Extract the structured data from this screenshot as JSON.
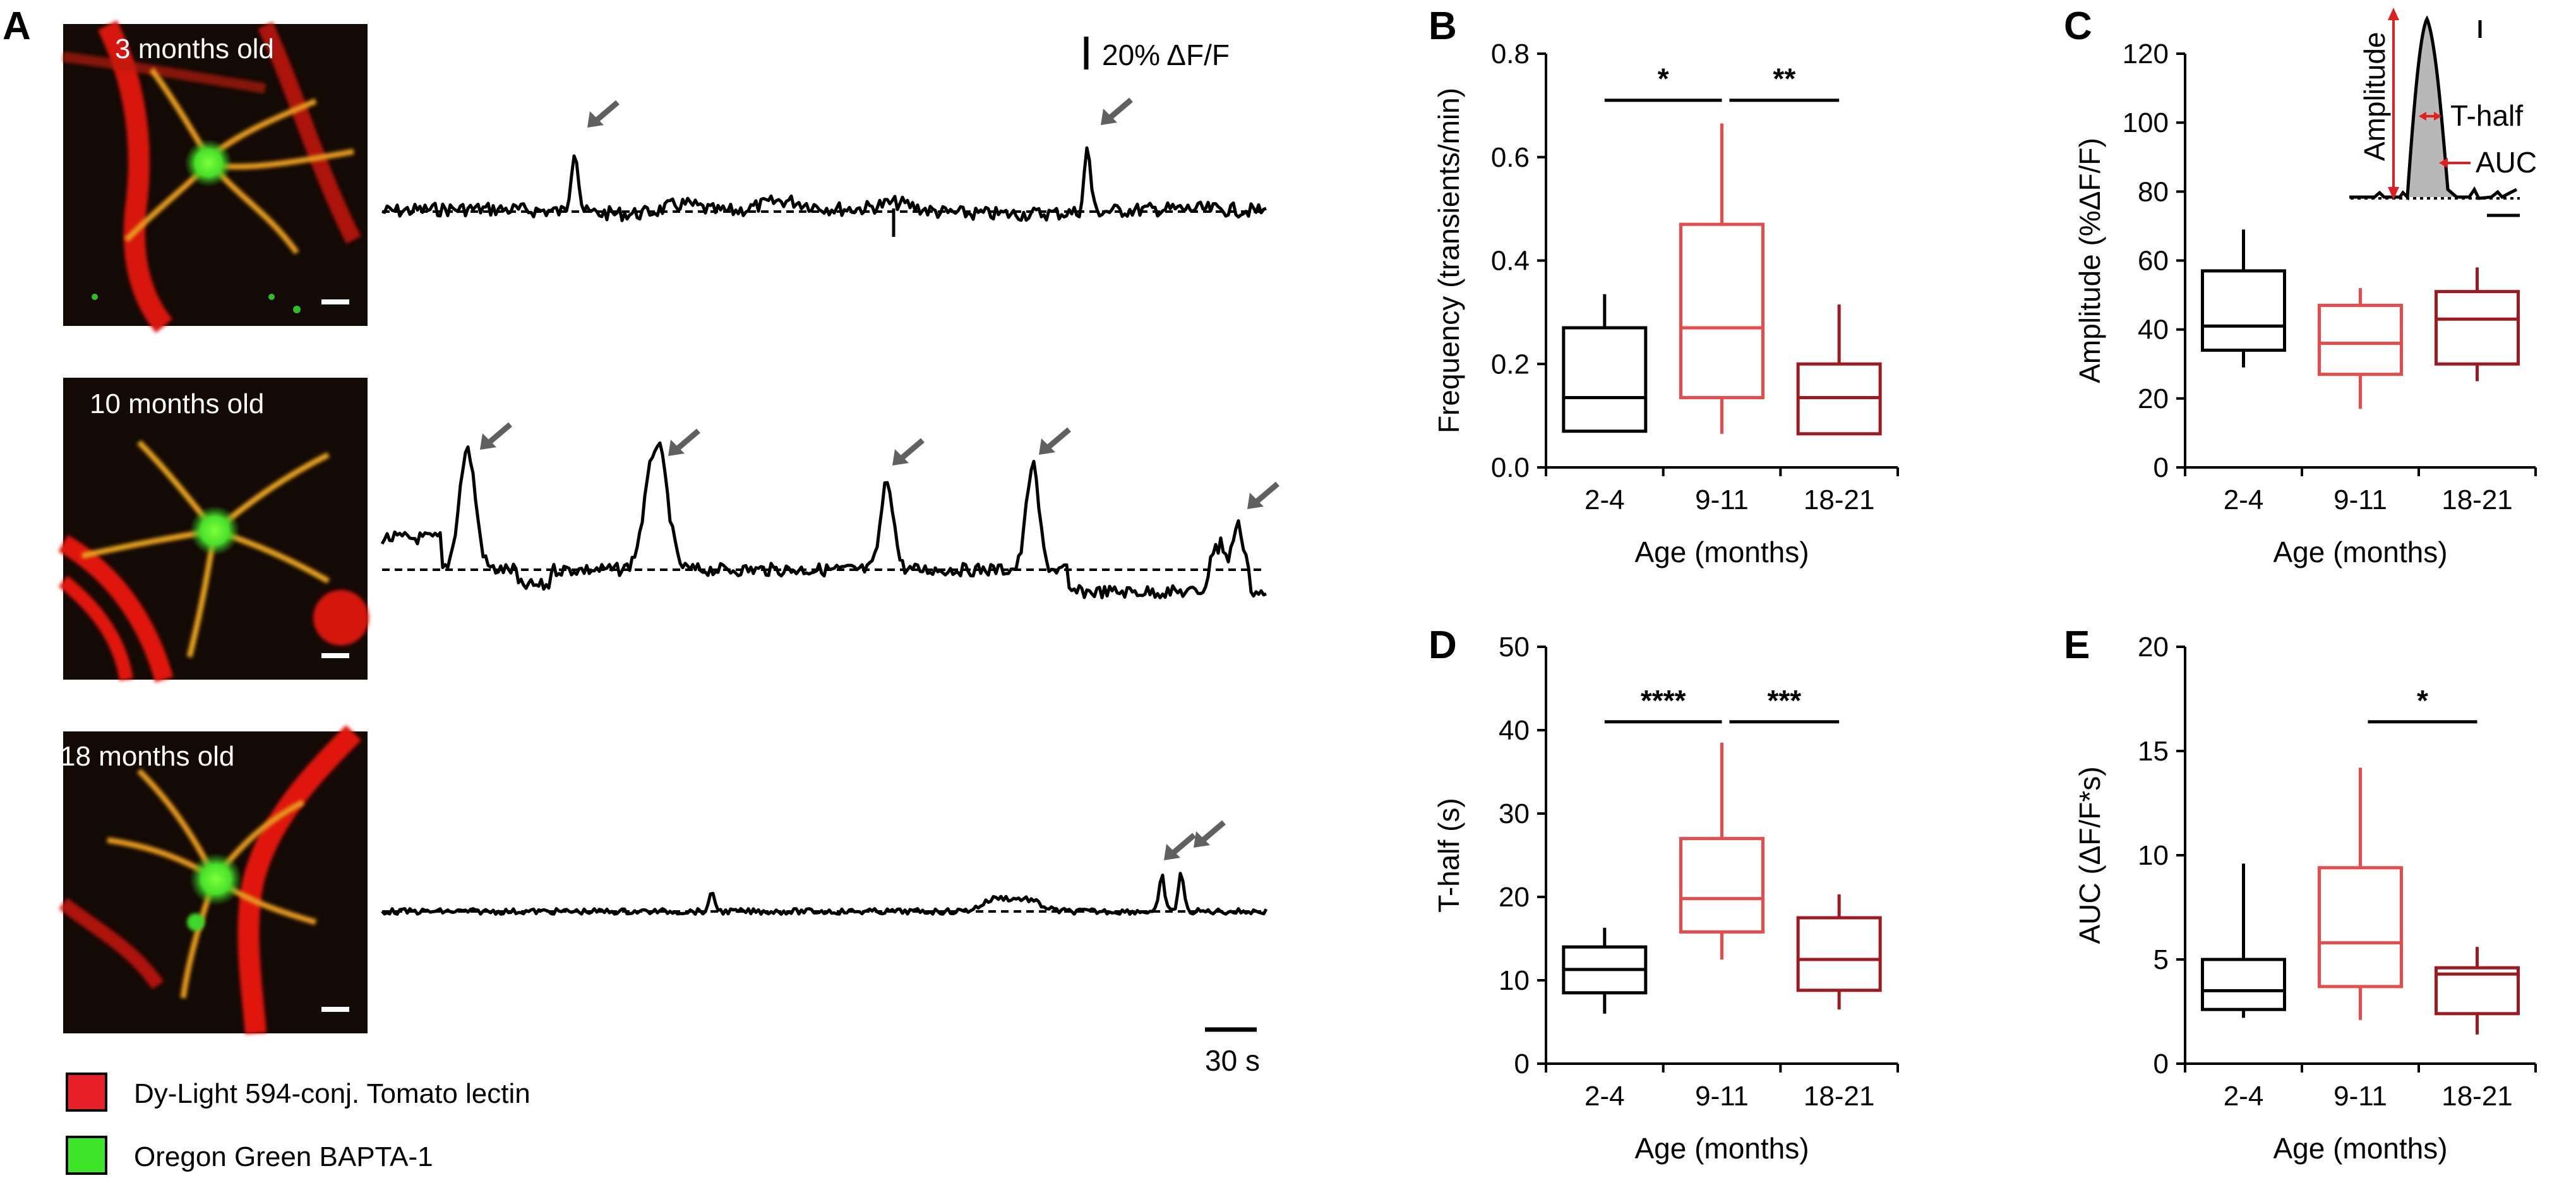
{
  "colors": {
    "black": "#000000",
    "light_red": "#ea4a4a",
    "dark_red": "#a01820",
    "arrow": "#606060",
    "lectin_red": "#e8202a",
    "ogb_green": "#3fe52a"
  },
  "panel_a": {
    "letter": "A",
    "images": [
      {
        "title": "3 months old"
      },
      {
        "title": "10 months old"
      },
      {
        "title": "18 months old"
      }
    ],
    "scale_y_label": "20% ΔF/F",
    "scale_x_label": "30 s",
    "legend": [
      {
        "label": "Dy-Light 594-conj. Tomato lectin",
        "color": "#e8202a"
      },
      {
        "label": "Oregon Green BAPTA-1",
        "color": "#3fe52a"
      }
    ]
  },
  "inset": {
    "amplitude_label": "Amplitude",
    "thalf_label": "T-half",
    "auc_label": "AUC"
  },
  "chart_data": [
    {
      "id": "B",
      "letter": "B",
      "type": "box",
      "ylabel": "Frequency (transients/min)",
      "xlabel": "Age (months)",
      "categories": [
        "2-4",
        "9-11",
        "18-21"
      ],
      "ylim": [
        0,
        0.8
      ],
      "yticks": [
        0.0,
        0.2,
        0.4,
        0.6,
        0.8
      ],
      "ytick_labels": [
        "0.0",
        "0.2",
        "0.4",
        "0.6",
        "0.8"
      ],
      "boxes": [
        {
          "whisker_low": 0.07,
          "q1": 0.07,
          "median": 0.135,
          "q3": 0.27,
          "whisker_high": 0.335
        },
        {
          "whisker_low": 0.065,
          "q1": 0.135,
          "median": 0.27,
          "q3": 0.47,
          "whisker_high": 0.665
        },
        {
          "whisker_low": 0.065,
          "q1": 0.065,
          "median": 0.135,
          "q3": 0.2,
          "whisker_high": 0.315
        }
      ],
      "significance": [
        {
          "from": 0,
          "to": 1,
          "y": 0.71,
          "label": "*"
        },
        {
          "from": 1,
          "to": 2,
          "y": 0.71,
          "label": "**"
        }
      ]
    },
    {
      "id": "C",
      "letter": "C",
      "type": "box",
      "ylabel": "Amplitude (%ΔF/F)",
      "xlabel": "Age (months)",
      "categories": [
        "2-4",
        "9-11",
        "18-21"
      ],
      "ylim": [
        0,
        120
      ],
      "yticks": [
        0,
        20,
        40,
        60,
        80,
        100,
        120
      ],
      "ytick_labels": [
        "0",
        "20",
        "40",
        "60",
        "80",
        "100",
        "120"
      ],
      "boxes": [
        {
          "whisker_low": 29,
          "q1": 34,
          "median": 41,
          "q3": 57,
          "whisker_high": 69
        },
        {
          "whisker_low": 17,
          "q1": 27,
          "median": 36,
          "q3": 47,
          "whisker_high": 52
        },
        {
          "whisker_low": 25,
          "q1": 30,
          "median": 43,
          "q3": 51,
          "whisker_high": 58
        }
      ],
      "significance": []
    },
    {
      "id": "D",
      "letter": "D",
      "type": "box",
      "ylabel": "T-half (s)",
      "xlabel": "Age (months)",
      "categories": [
        "2-4",
        "9-11",
        "18-21"
      ],
      "ylim": [
        0,
        50
      ],
      "yticks": [
        0,
        10,
        20,
        30,
        40,
        50
      ],
      "ytick_labels": [
        "0",
        "10",
        "20",
        "30",
        "40",
        "50"
      ],
      "boxes": [
        {
          "whisker_low": 6,
          "q1": 8.5,
          "median": 11.3,
          "q3": 14,
          "whisker_high": 16.3
        },
        {
          "whisker_low": 12.5,
          "q1": 15.8,
          "median": 19.8,
          "q3": 27,
          "whisker_high": 38.5
        },
        {
          "whisker_low": 6.5,
          "q1": 8.8,
          "median": 12.5,
          "q3": 17.5,
          "whisker_high": 20.3
        }
      ],
      "significance": [
        {
          "from": 0,
          "to": 1,
          "y": 41,
          "label": "****"
        },
        {
          "from": 1,
          "to": 2,
          "y": 41,
          "label": "***"
        }
      ]
    },
    {
      "id": "E",
      "letter": "E",
      "type": "box",
      "ylabel": "AUC (ΔF/F*s)",
      "xlabel": "Age (months)",
      "categories": [
        "2-4",
        "9-11",
        "18-21"
      ],
      "ylim": [
        0,
        20
      ],
      "yticks": [
        0,
        5,
        10,
        15,
        20
      ],
      "ytick_labels": [
        "0",
        "5",
        "10",
        "15",
        "20"
      ],
      "boxes": [
        {
          "whisker_low": 2.2,
          "q1": 2.6,
          "median": 3.5,
          "q3": 5.0,
          "whisker_high": 9.6
        },
        {
          "whisker_low": 2.1,
          "q1": 3.7,
          "median": 5.8,
          "q3": 9.4,
          "whisker_high": 14.2
        },
        {
          "whisker_low": 1.4,
          "q1": 2.4,
          "median": 4.3,
          "q3": 4.6,
          "whisker_high": 5.6
        }
      ],
      "significance": [
        {
          "from": 1,
          "to": 2,
          "y": 16.4,
          "label": "*"
        }
      ]
    }
  ]
}
